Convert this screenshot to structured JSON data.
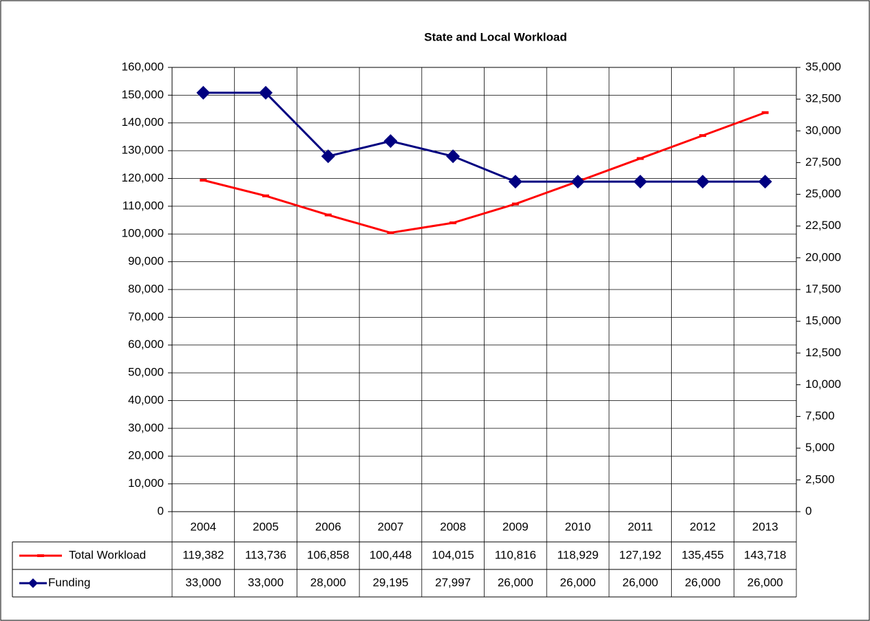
{
  "chart_data": {
    "type": "line",
    "title": "State and Local Workload",
    "categories": [
      "2004",
      "2005",
      "2006",
      "2007",
      "2008",
      "2009",
      "2010",
      "2011",
      "2012",
      "2013"
    ],
    "series": [
      {
        "name": "Total Workload",
        "color": "#ff0000",
        "axis": "y",
        "values": [
          119382,
          113736,
          106858,
          100448,
          104015,
          110816,
          118929,
          127192,
          135455,
          143718
        ],
        "value_labels": [
          "119,382",
          "113,736",
          "106,858",
          "100,448",
          "104,015",
          "110,816",
          "118,929",
          "127,192",
          "135,455",
          "143,718"
        ]
      },
      {
        "name": "Funding",
        "color": "#000080",
        "axis": "y2",
        "values": [
          33000,
          33000,
          28000,
          29195,
          27997,
          26000,
          26000,
          26000,
          26000,
          26000
        ],
        "value_labels": [
          "33,000",
          "33,000",
          "28,000",
          "29,195",
          "27,997",
          "26,000",
          "26,000",
          "26,000",
          "26,000",
          "26,000"
        ]
      }
    ],
    "ylim": [
      0,
      160000
    ],
    "yticks": [
      0,
      {
        "value": 10000,
        "label": "10,000"
      },
      {
        "value": 20000,
        "label": "20,000"
      },
      {
        "value": 30000,
        "label": "30,000"
      },
      {
        "value": 40000,
        "label": "40,000"
      },
      {
        "value": 50000,
        "label": "50,000"
      },
      {
        "value": 60000,
        "label": "60,000"
      },
      {
        "value": 70000,
        "label": "70,000"
      },
      {
        "value": 80000,
        "label": "80,000"
      },
      {
        "value": 90000,
        "label": "90,000"
      },
      {
        "value": 100000,
        "label": "100,000"
      },
      {
        "value": 110000,
        "label": "110,000"
      },
      {
        "value": 120000,
        "label": "120,000"
      },
      {
        "value": 130000,
        "label": "130,000"
      },
      {
        "value": 140000,
        "label": "140,000"
      },
      {
        "value": 150000,
        "label": "150,000"
      },
      {
        "value": 160000,
        "label": "160,000"
      }
    ],
    "y2lim": [
      0,
      35000
    ],
    "y2ticks": [
      0,
      {
        "value": 2500,
        "label": "2,500"
      },
      {
        "value": 5000,
        "label": "5,000"
      },
      {
        "value": 7500,
        "label": "7,500"
      },
      {
        "value": 10000,
        "label": "10,000"
      },
      {
        "value": 12500,
        "label": "12,500"
      },
      {
        "value": 15000,
        "label": "15,000"
      },
      {
        "value": 17500,
        "label": "17,500"
      },
      {
        "value": 20000,
        "label": "20,000"
      },
      {
        "value": 22500,
        "label": "22,500"
      },
      {
        "value": 25000,
        "label": "25,000"
      },
      {
        "value": 27500,
        "label": "27,500"
      },
      {
        "value": 30000,
        "label": "30,000"
      },
      {
        "value": 32500,
        "label": "32,500"
      },
      {
        "value": 35000,
        "label": "35,000"
      }
    ],
    "grid": true
  }
}
